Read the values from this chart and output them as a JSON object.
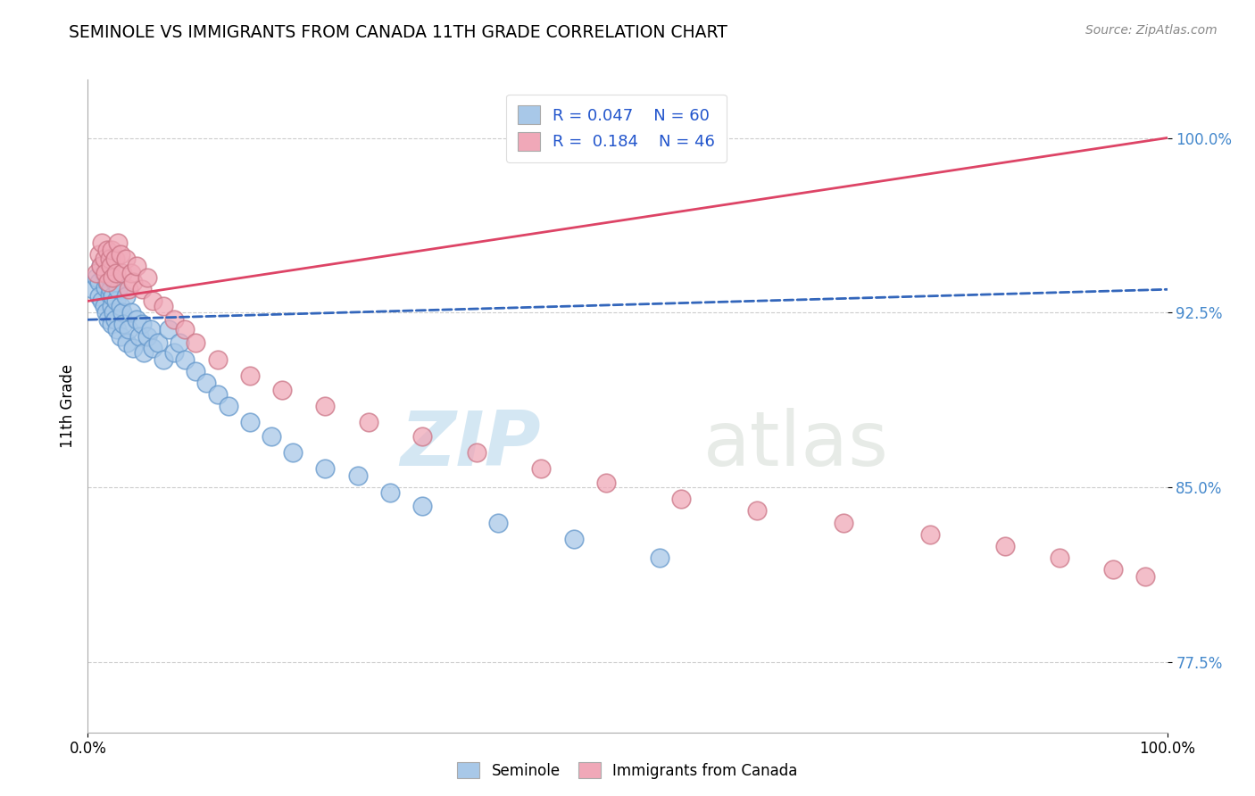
{
  "title": "SEMINOLE VS IMMIGRANTS FROM CANADA 11TH GRADE CORRELATION CHART",
  "source": "Source: ZipAtlas.com",
  "ylabel": "11th Grade",
  "y_ticks": [
    0.775,
    0.85,
    0.925,
    1.0
  ],
  "y_tick_labels": [
    "77.5%",
    "85.0%",
    "92.5%",
    "100.0%"
  ],
  "x_range": [
    0.0,
    1.0
  ],
  "y_range": [
    0.745,
    1.025
  ],
  "legend_blue_R": "R = 0.047",
  "legend_blue_N": "N = 60",
  "legend_pink_R": "R =  0.184",
  "legend_pink_N": "N = 46",
  "blue_color": "#A8C8E8",
  "pink_color": "#F0A8B8",
  "blue_line_color": "#3366BB",
  "pink_line_color": "#DD4466",
  "watermark_zip": "ZIP",
  "watermark_atlas": "atlas",
  "blue_line_start_y": 0.922,
  "blue_line_end_y": 0.935,
  "pink_line_start_y": 0.93,
  "pink_line_end_y": 1.0,
  "blue_scatter_x": [
    0.005,
    0.008,
    0.01,
    0.01,
    0.012,
    0.013,
    0.015,
    0.015,
    0.016,
    0.017,
    0.018,
    0.019,
    0.02,
    0.02,
    0.021,
    0.022,
    0.022,
    0.023,
    0.024,
    0.025,
    0.025,
    0.026,
    0.027,
    0.028,
    0.03,
    0.03,
    0.032,
    0.033,
    0.035,
    0.036,
    0.038,
    0.04,
    0.042,
    0.045,
    0.048,
    0.05,
    0.052,
    0.055,
    0.058,
    0.06,
    0.065,
    0.07,
    0.075,
    0.08,
    0.085,
    0.09,
    0.1,
    0.11,
    0.12,
    0.13,
    0.15,
    0.17,
    0.19,
    0.22,
    0.25,
    0.28,
    0.31,
    0.38,
    0.45,
    0.53
  ],
  "blue_scatter_y": [
    0.935,
    0.94,
    0.938,
    0.932,
    0.945,
    0.93,
    0.942,
    0.928,
    0.936,
    0.925,
    0.938,
    0.922,
    0.94,
    0.933,
    0.935,
    0.928,
    0.92,
    0.932,
    0.925,
    0.938,
    0.922,
    0.93,
    0.918,
    0.935,
    0.928,
    0.915,
    0.925,
    0.92,
    0.932,
    0.912,
    0.918,
    0.925,
    0.91,
    0.922,
    0.915,
    0.92,
    0.908,
    0.915,
    0.918,
    0.91,
    0.912,
    0.905,
    0.918,
    0.908,
    0.912,
    0.905,
    0.9,
    0.895,
    0.89,
    0.885,
    0.878,
    0.872,
    0.865,
    0.858,
    0.855,
    0.848,
    0.842,
    0.835,
    0.828,
    0.82
  ],
  "pink_scatter_x": [
    0.008,
    0.01,
    0.012,
    0.013,
    0.015,
    0.016,
    0.018,
    0.019,
    0.02,
    0.021,
    0.022,
    0.023,
    0.025,
    0.026,
    0.028,
    0.03,
    0.032,
    0.035,
    0.038,
    0.04,
    0.042,
    0.045,
    0.05,
    0.055,
    0.06,
    0.07,
    0.08,
    0.09,
    0.1,
    0.12,
    0.15,
    0.18,
    0.22,
    0.26,
    0.31,
    0.36,
    0.42,
    0.48,
    0.55,
    0.62,
    0.7,
    0.78,
    0.85,
    0.9,
    0.95,
    0.98
  ],
  "pink_scatter_y": [
    0.942,
    0.95,
    0.945,
    0.955,
    0.948,
    0.942,
    0.952,
    0.938,
    0.948,
    0.945,
    0.952,
    0.94,
    0.948,
    0.942,
    0.955,
    0.95,
    0.942,
    0.948,
    0.935,
    0.942,
    0.938,
    0.945,
    0.935,
    0.94,
    0.93,
    0.928,
    0.922,
    0.918,
    0.912,
    0.905,
    0.898,
    0.892,
    0.885,
    0.878,
    0.872,
    0.865,
    0.858,
    0.852,
    0.845,
    0.84,
    0.835,
    0.83,
    0.825,
    0.82,
    0.815,
    0.812
  ]
}
